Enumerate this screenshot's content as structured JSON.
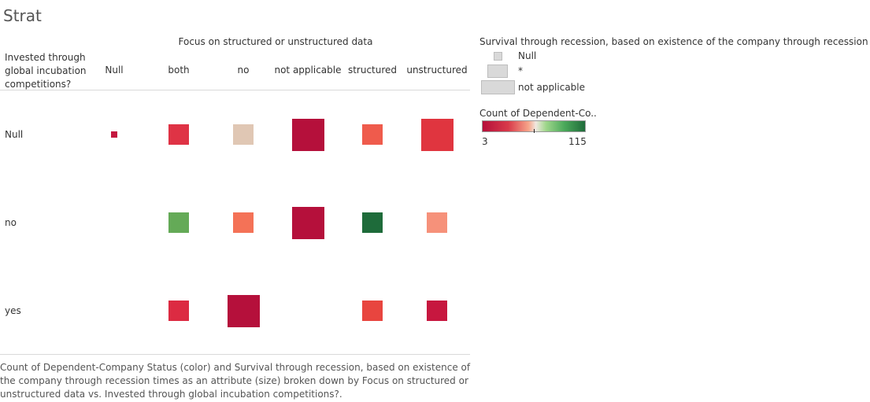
{
  "title": "Strat",
  "chart_data": {
    "type": "heatmap",
    "column_header": "Focus on structured or unstructured data",
    "row_header": "Invested through global incubation competitions?",
    "columns": [
      "Null",
      "both",
      "no",
      "not applicable",
      "structured",
      "unstructured"
    ],
    "rows": [
      "Null",
      "no",
      "yes"
    ],
    "cells": [
      {
        "row": "Null",
        "col": "Null",
        "size": "Null",
        "count": 5
      },
      {
        "row": "Null",
        "col": "both",
        "size": "*",
        "count": 16
      },
      {
        "row": "Null",
        "col": "no",
        "size": "*",
        "count": 45
      },
      {
        "row": "Null",
        "col": "not applicable",
        "size": "not applicable",
        "count": 4
      },
      {
        "row": "Null",
        "col": "structured",
        "size": "*",
        "count": 20
      },
      {
        "row": "Null",
        "col": "unstructured",
        "size": "not applicable",
        "count": 14
      },
      {
        "row": "no",
        "col": "both",
        "size": "*",
        "count": 90
      },
      {
        "row": "no",
        "col": "no",
        "size": "*",
        "count": 25
      },
      {
        "row": "no",
        "col": "not applicable",
        "size": "not applicable",
        "count": 3
      },
      {
        "row": "no",
        "col": "structured",
        "size": "*",
        "count": 115
      },
      {
        "row": "no",
        "col": "unstructured",
        "size": "*",
        "count": 30
      },
      {
        "row": "yes",
        "col": "both",
        "size": "*",
        "count": 13
      },
      {
        "row": "yes",
        "col": "no",
        "size": "not applicable",
        "count": 3
      },
      {
        "row": "yes",
        "col": "structured",
        "size": "*",
        "count": 16
      },
      {
        "row": "yes",
        "col": "unstructured",
        "size": "*",
        "count": 8
      }
    ],
    "size_legend": {
      "title": "Survival through recession, based on existence of the company through recession times",
      "items": [
        "Null",
        "*",
        "not applicable"
      ]
    },
    "color_legend": {
      "title": "Count of Dependent-Co..",
      "min": 3,
      "max": 115,
      "min_label": "3",
      "max_label": "115",
      "colors": [
        "#b5103b",
        "#d83a4a",
        "#f6a58a",
        "#f0e8e0",
        "#9ed68a",
        "#4aa85a",
        "#1f6b3a"
      ]
    }
  },
  "colors": {
    "Null|Null": "#c4173f",
    "Null|both": "#df3345",
    "Null|no": "#e0c7b4",
    "Null|not applicable": "#b5103b",
    "Null|structured": "#ef5b4c",
    "Null|unstructured": "#e0353f",
    "no|both": "#64aa57",
    "no|no": "#f47257",
    "no|not applicable": "#b5103b",
    "no|structured": "#1e6b3a",
    "no|unstructured": "#f6917a",
    "yes|both": "#dc2b42",
    "yes|no": "#b5103b",
    "yes|structured": "#e8453f",
    "yes|unstructured": "#c7173f"
  },
  "footer": "Count of Dependent-Company Status (color) and Survival through recession, based on existence of the company through recession times as an attribute (size) broken down by Focus on structured or unstructured data vs. Invested through global incubation competitions?."
}
